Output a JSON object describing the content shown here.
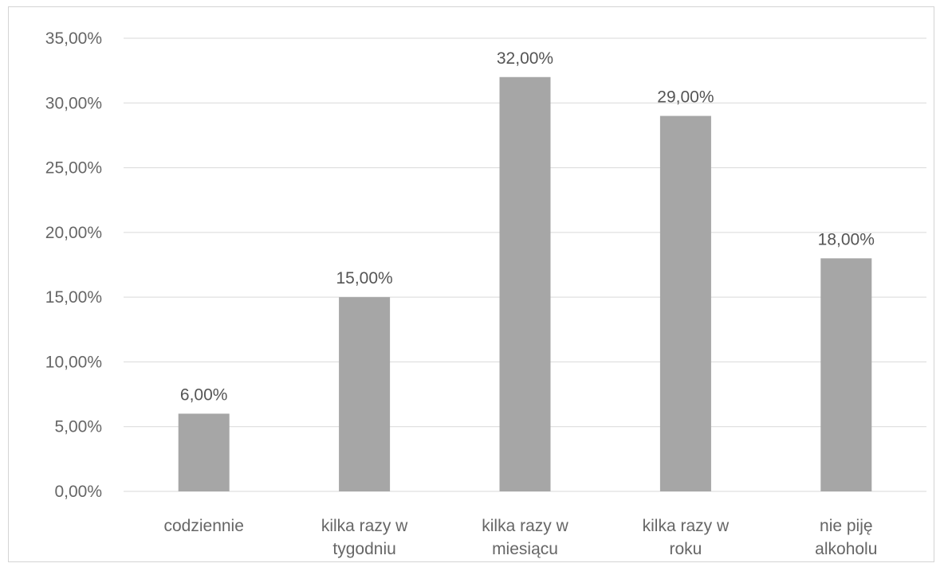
{
  "chart_data": {
    "type": "bar",
    "title": "",
    "xlabel": "",
    "ylabel": "",
    "categories": [
      [
        "codziennie"
      ],
      [
        "kilka razy w",
        "tygodniu"
      ],
      [
        "kilka razy w",
        "miesiącu"
      ],
      [
        "kilka razy w",
        "roku"
      ],
      [
        "nie piję",
        "alkoholu"
      ]
    ],
    "values": [
      6,
      15,
      32,
      29,
      18
    ],
    "data_labels": [
      "6,00%",
      "15,00%",
      "32,00%",
      "29,00%",
      "18,00%"
    ],
    "yticks": [
      0,
      5,
      10,
      15,
      20,
      25,
      30,
      35
    ],
    "ytick_labels": [
      "0,00%",
      "5,00%",
      "10,00%",
      "15,00%",
      "20,00%",
      "25,00%",
      "30,00%",
      "35,00%"
    ],
    "ylim": [
      0,
      35
    ],
    "grid": true,
    "legend": "none",
    "colors": {
      "bar": "#a6a6a6",
      "grid": "#d9d9d9",
      "text": "#666666"
    }
  }
}
